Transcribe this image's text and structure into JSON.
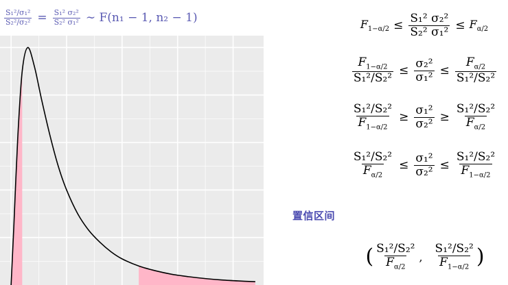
{
  "top_formula": {
    "lhs_num": "S₁²/σ₁²",
    "lhs_den": "S₂²/σ₂²",
    "eq": "=",
    "mid_num": "S₁² σ₂²",
    "mid_den": "S₂² σ₁²",
    "rhs": "∼ F(n₁ − 1, n₂ − 1)"
  },
  "colors": {
    "accent": "#5b5bb3",
    "shade": "#ffb6c8",
    "panel": "#ebebeb",
    "grid": "#ffffff",
    "curve": "#000000"
  },
  "chart_data": {
    "type": "area",
    "curve": "F density (right-skewed)",
    "x": [
      0.0,
      0.05,
      0.12,
      0.2,
      0.3,
      0.42,
      0.55,
      0.7,
      0.85,
      1.0,
      1.2,
      1.4,
      1.6,
      1.8,
      2.0,
      2.3,
      2.6,
      2.9,
      3.2,
      3.5,
      3.8,
      4.1,
      4.4
    ],
    "y": [
      0.0,
      0.25,
      0.62,
      0.9,
      1.0,
      0.92,
      0.78,
      0.63,
      0.5,
      0.4,
      0.3,
      0.23,
      0.18,
      0.14,
      0.11,
      0.08,
      0.06,
      0.045,
      0.035,
      0.027,
      0.021,
      0.017,
      0.014
    ],
    "shaded_left": [
      0.0,
      0.2
    ],
    "shaded_right": [
      2.3,
      4.4
    ],
    "grid": true,
    "xlim": [
      -0.2,
      4.55
    ],
    "ylim": [
      0.0,
      1.05
    ]
  },
  "inequalities": [
    {
      "left_F": "F",
      "left_sub": "1−α/2",
      "op1": "≤",
      "mid_num": "S₁² σ₂²",
      "mid_den": "S₂² σ₁²",
      "op2": "≤",
      "right_F": "F",
      "right_sub": "α/2"
    },
    {
      "a_num": "F",
      "a_num_sub": "1−α/2",
      "a_den": "S₁²/S₂²",
      "op1": "≤",
      "b_num": "σ₂²",
      "b_den": "σ₁²",
      "op2": "≤",
      "c_num": "F",
      "c_num_sub": "α/2",
      "c_den": "S₁²/S₂²"
    },
    {
      "a_num": "S₁²/S₂²",
      "a_den": "F",
      "a_den_sub": "1−α/2",
      "op1": "≥",
      "b_num": "σ₁²",
      "b_den": "σ₂²",
      "op2": "≥",
      "c_num": "S₁²/S₂²",
      "c_den": "F",
      "c_den_sub": "α/2"
    },
    {
      "a_num": "S₁²/S₂²",
      "a_den": "F",
      "a_den_sub": "α/2",
      "op1": "≤",
      "b_num": "σ₁²",
      "b_den": "σ₂²",
      "op2": "≤",
      "c_num": "S₁²/S₂²",
      "c_den": "F",
      "c_den_sub": "1−α/2"
    }
  ],
  "ci_label": "置信区间",
  "ci": {
    "open": "(",
    "a_num": "S₁²/S₂²",
    "a_den": "F",
    "a_den_sub": "α/2",
    "comma": ",",
    "b_num": "S₁²/S₂²",
    "b_den": "F",
    "b_den_sub": "1−α/2",
    "close": ")"
  }
}
